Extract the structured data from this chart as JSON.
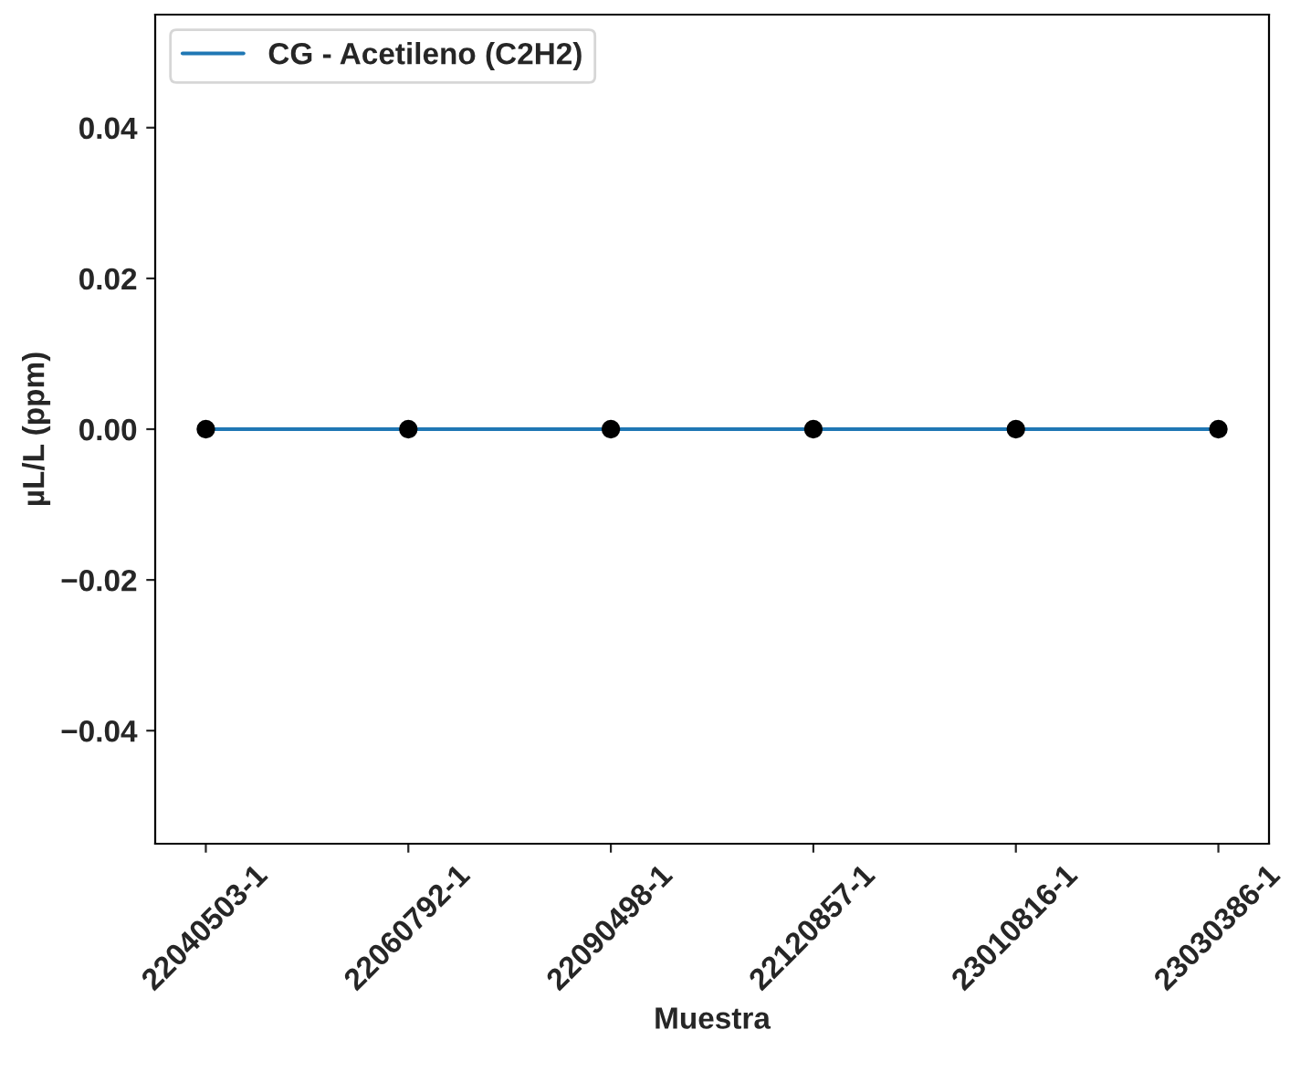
{
  "chart_data": {
    "type": "line",
    "xlabel": "Muestra",
    "ylabel": "µL/L (ppm)",
    "categories": [
      "22040503-1",
      "22060792-1",
      "22090498-1",
      "22120857-1",
      "23010816-1",
      "23030386-1"
    ],
    "series": [
      {
        "name": "CG - Acetileno (C2H2)",
        "color": "#1f77b4",
        "marker": "none",
        "values": [
          0,
          0,
          0,
          0,
          0,
          0
        ]
      },
      {
        "color": "#000000",
        "type": "scatter",
        "marker": "circle",
        "values": [
          0,
          0,
          0,
          0,
          0,
          0
        ]
      }
    ],
    "ylim": [
      -0.055,
      0.055
    ],
    "yticks": [
      {
        "value": -0.04,
        "label": "−0.04"
      },
      {
        "value": -0.02,
        "label": "−0.02"
      },
      {
        "value": 0,
        "label": "0.00"
      },
      {
        "value": 0.02,
        "label": "0.02"
      },
      {
        "value": 0.04,
        "label": "0.04"
      }
    ],
    "grid": false,
    "legend": "top left"
  }
}
